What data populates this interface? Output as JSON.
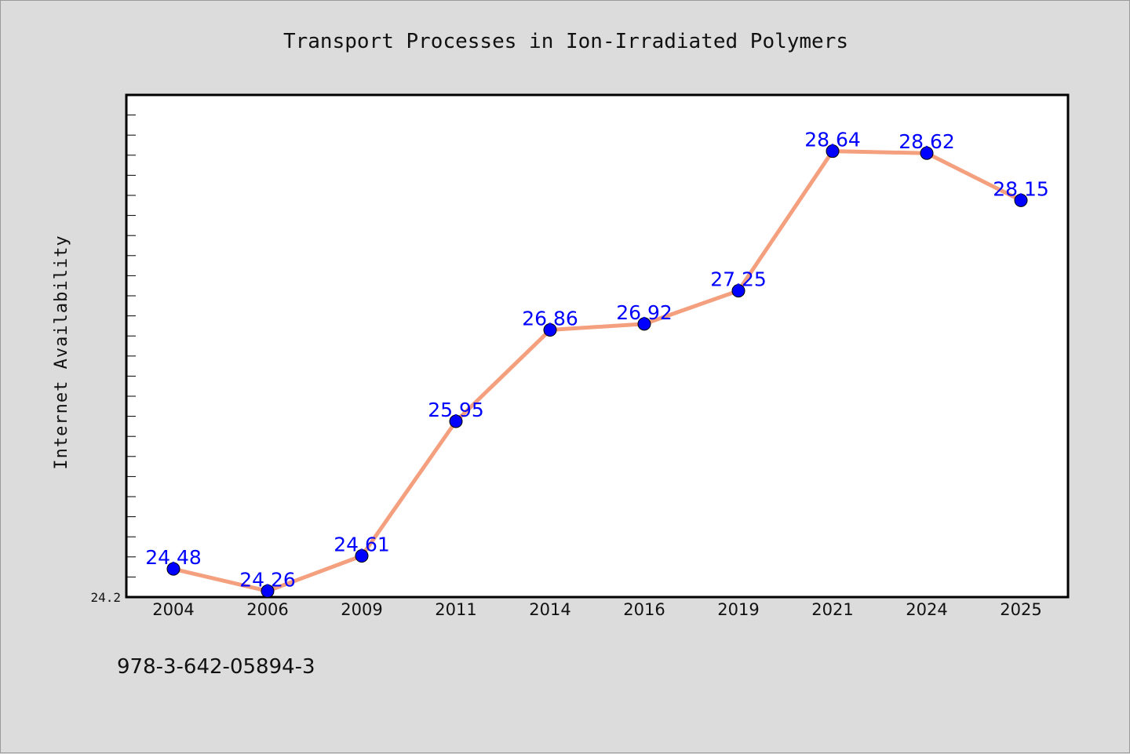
{
  "colors": {
    "background": "#dcdcdc",
    "plot_background": "#ffffff",
    "line": "#f4a07e",
    "marker": "#0000ff",
    "data_label": "#0000ff"
  },
  "footer_text": "978-3-642-05894-3",
  "chart_data": {
    "type": "line",
    "title": "Transport Processes in Ion-Irradiated Polymers",
    "xlabel": "",
    "ylabel": "Internet Availability",
    "categories": [
      "2004",
      "2006",
      "2009",
      "2011",
      "2014",
      "2016",
      "2019",
      "2021",
      "2024",
      "2025"
    ],
    "values": [
      24.48,
      24.26,
      24.61,
      25.95,
      26.86,
      26.92,
      27.25,
      28.64,
      28.62,
      28.15
    ],
    "data_labels": [
      "24.48",
      "24.26",
      "24.61",
      "25.95",
      "26.86",
      "26.92",
      "27.25",
      "28.64",
      "28.62",
      "28.15"
    ],
    "ylim": [
      24.2,
      29.2
    ],
    "y_tick_label": "24.2",
    "grid": false,
    "legend": "none",
    "marker": "circle"
  }
}
